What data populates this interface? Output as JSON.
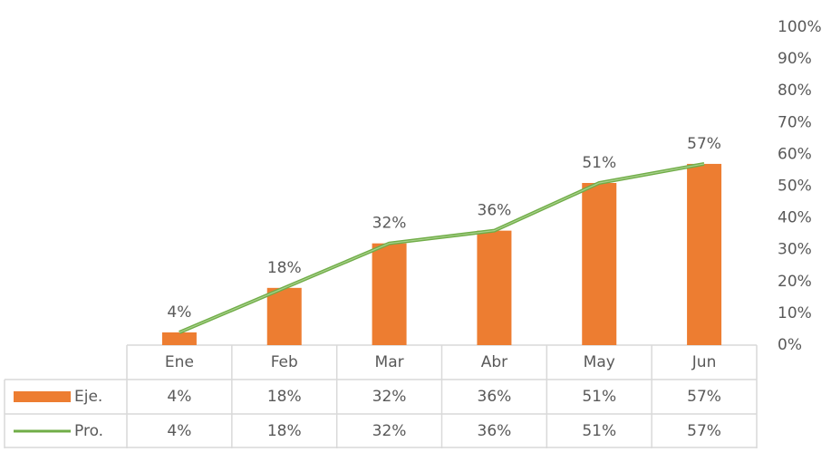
{
  "chart_data": {
    "type": "bar-line",
    "categories": [
      "Ene",
      "Feb",
      "Mar",
      "Abr",
      "May",
      "Jun"
    ],
    "series": [
      {
        "name": "Eje.",
        "type": "bar",
        "color": "#ed7d31",
        "values": [
          4,
          18,
          32,
          36,
          51,
          57
        ],
        "value_labels": [
          "4%",
          "18%",
          "32%",
          "36%",
          "51%",
          "57%"
        ]
      },
      {
        "name": "Pro.",
        "type": "line",
        "color": "#70ad47",
        "values": [
          4,
          18,
          32,
          36,
          51,
          57
        ],
        "value_labels": [
          "4%",
          "18%",
          "32%",
          "36%",
          "51%",
          "57%"
        ]
      }
    ],
    "ylim": [
      0,
      100
    ],
    "yticks": [
      {
        "value": 0,
        "label": "0%"
      },
      {
        "value": 10,
        "label": "10%"
      },
      {
        "value": 20,
        "label": "20%"
      },
      {
        "value": 30,
        "label": "30%"
      },
      {
        "value": 40,
        "label": "40%"
      },
      {
        "value": 50,
        "label": "50%"
      },
      {
        "value": 60,
        "label": "60%"
      },
      {
        "value": 70,
        "label": "70%"
      },
      {
        "value": 80,
        "label": "80%"
      },
      {
        "value": 90,
        "label": "90%"
      },
      {
        "value": 100,
        "label": "100%"
      }
    ],
    "grid": false,
    "data_table": true
  }
}
